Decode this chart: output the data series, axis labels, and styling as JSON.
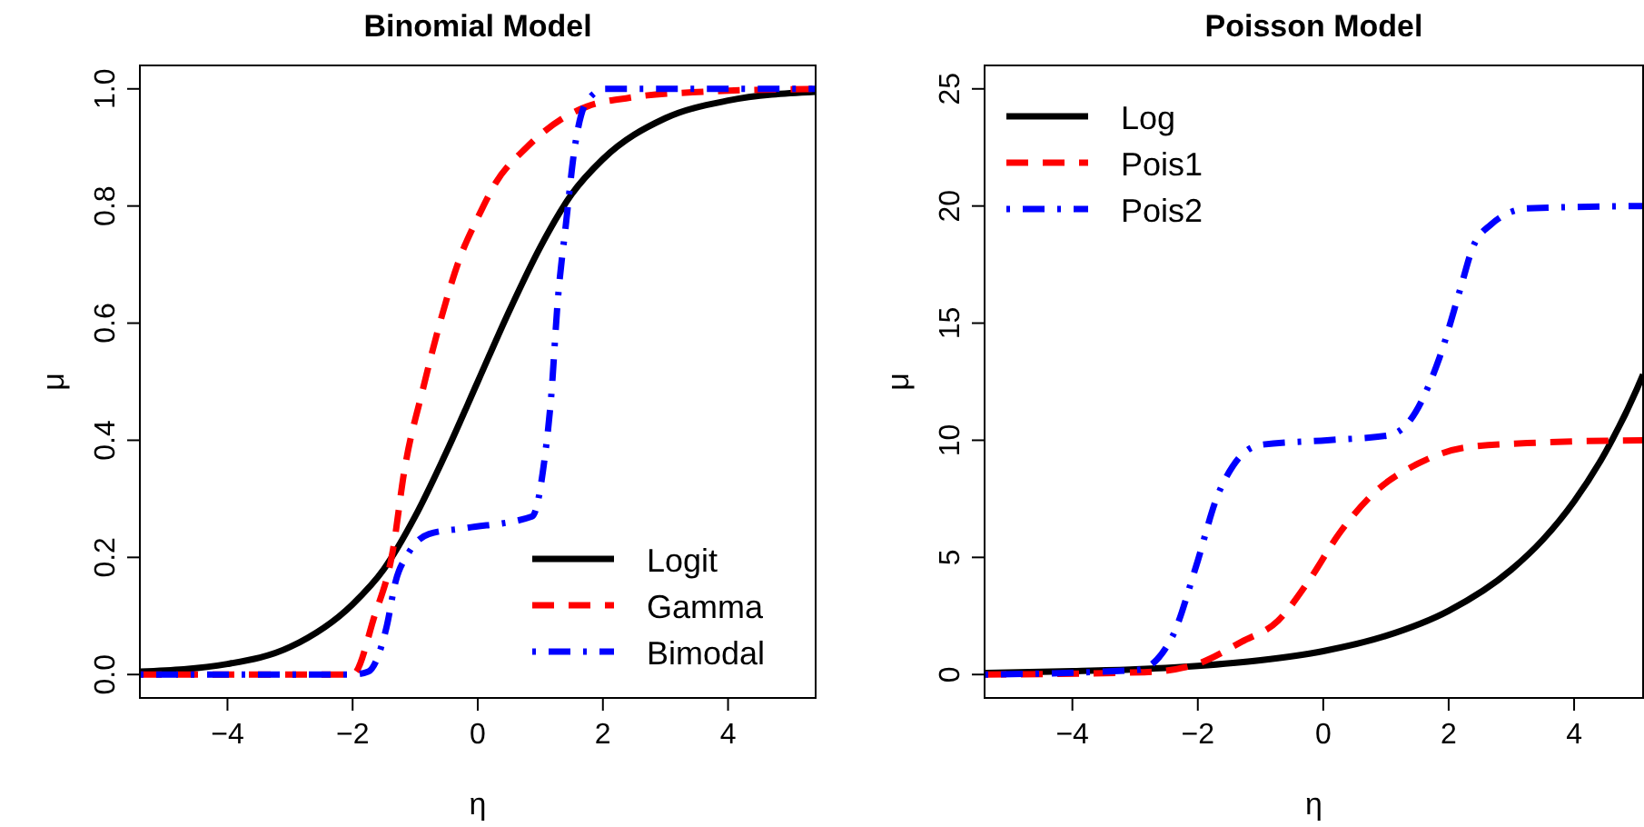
{
  "chart_data": [
    {
      "type": "line",
      "title": "Binomial Model",
      "xlabel": "η",
      "ylabel": "μ",
      "xlim": [
        -5.4,
        5.4
      ],
      "ylim": [
        -0.04,
        1.04
      ],
      "xticks": [
        -4,
        -2,
        0,
        2,
        4
      ],
      "yticks": [
        {
          "value": 0,
          "label": "0.0"
        },
        0.2,
        0.4,
        0.6,
        0.8,
        {
          "value": 1,
          "label": "1.0"
        }
      ],
      "legend": "bottom right",
      "grid": false,
      "marker": "none",
      "series": [
        {
          "name": "Logit",
          "color": "#000000",
          "line_style": "solid",
          "x": [
            -5.4,
            -4,
            -3,
            -2,
            -1.5,
            -1,
            -0.5,
            0,
            0.5,
            1,
            1.5,
            2,
            3,
            4,
            5.4
          ],
          "values": [
            0.005,
            0.018,
            0.047,
            0.12,
            0.18,
            0.27,
            0.38,
            0.5,
            0.62,
            0.73,
            0.82,
            0.88,
            0.95,
            0.98,
            0.995
          ]
        },
        {
          "name": "Gamma",
          "color": "#ff0000",
          "line_style": "dashed",
          "x": [
            -5.4,
            -2,
            -1.65,
            -1.36,
            -1.17,
            -0.87,
            -0.58,
            -0.29,
            0,
            0.29,
            0.78,
            1.36,
            1.75,
            2.43,
            3.6,
            5.4
          ],
          "values": [
            0,
            0,
            0.1,
            0.21,
            0.35,
            0.49,
            0.61,
            0.71,
            0.78,
            0.84,
            0.9,
            0.95,
            0.97,
            0.985,
            0.995,
            1
          ]
        },
        {
          "name": "Bimodal",
          "color": "#0000ff",
          "line_style": "dashdot",
          "x": [
            -5.4,
            -2,
            -1.75,
            -1.46,
            -1.31,
            -1.12,
            -0.78,
            -0.19,
            0.87,
            1.07,
            1.17,
            1.28,
            1.41,
            1.55,
            1.75,
            2.04,
            5.4
          ],
          "values": [
            0,
            0,
            0.005,
            0.08,
            0.16,
            0.205,
            0.24,
            0.25,
            0.27,
            0.37,
            0.47,
            0.64,
            0.77,
            0.9,
            0.98,
            1,
            1
          ]
        }
      ]
    },
    {
      "type": "line",
      "title": "Poisson Model",
      "xlabel": "η",
      "ylabel": "μ",
      "xlim": [
        -5.4,
        5.1
      ],
      "ylim": [
        -1,
        26
      ],
      "xticks": [
        -4,
        -2,
        0,
        2,
        4
      ],
      "yticks": [
        0,
        5,
        10,
        15,
        20,
        25
      ],
      "legend": "top left",
      "grid": false,
      "marker": "none",
      "series": [
        {
          "name": "Log",
          "color": "#000000",
          "line_style": "solid",
          "x": [
            -5.4,
            -4,
            -3,
            -2,
            -1,
            0,
            1,
            2,
            3,
            3.5,
            4,
            4.5,
            5,
            5.1
          ],
          "values": [
            0.07,
            0.14,
            0.22,
            0.37,
            0.61,
            1,
            1.65,
            2.72,
            4.48,
            5.75,
            7.39,
            9.49,
            12.18,
            12.81
          ]
        },
        {
          "name": "Pois1",
          "color": "#ff0000",
          "line_style": "dashed",
          "x": [
            -5.4,
            -2.85,
            -2.07,
            -1.3,
            -0.72,
            -0.23,
            0.25,
            0.83,
            1.51,
            2.29,
            3.45,
            5.1
          ],
          "values": [
            0,
            0.1,
            0.4,
            1.4,
            2.3,
            4,
            6,
            7.8,
            9,
            9.7,
            9.9,
            10
          ]
        },
        {
          "name": "Pois2",
          "color": "#0000ff",
          "line_style": "dashdot",
          "x": [
            -5.4,
            -2.95,
            -2.41,
            -2.03,
            -1.69,
            -1.44,
            -1.01,
            0.06,
            1.03,
            1.37,
            1.85,
            2.19,
            2.38,
            2.67,
            3.26,
            5.1
          ],
          "values": [
            0,
            0.2,
            1.6,
            4.6,
            7.6,
            8.9,
            9.8,
            10,
            10.2,
            10.8,
            13.5,
            16.5,
            18.2,
            19.2,
            19.9,
            20
          ]
        }
      ]
    }
  ]
}
